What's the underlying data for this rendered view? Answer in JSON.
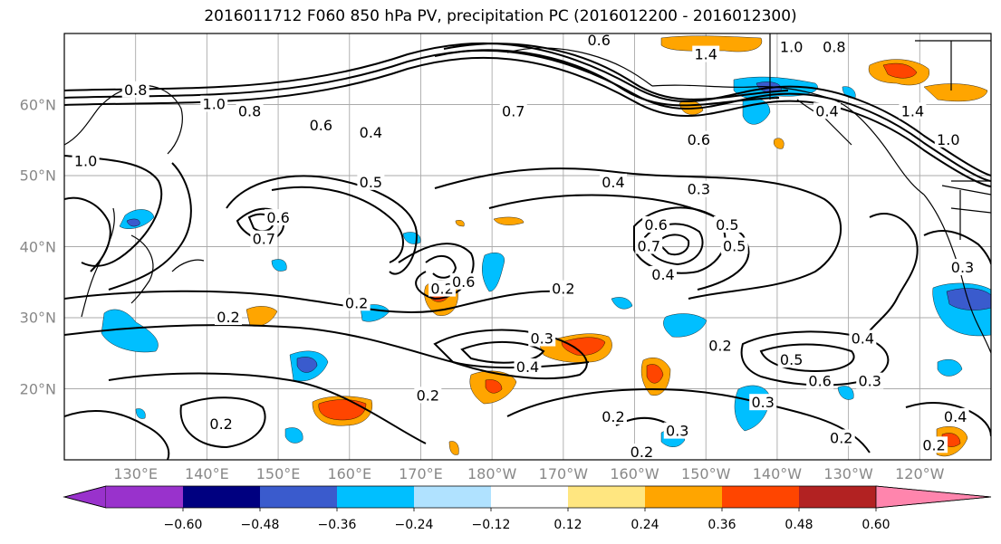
{
  "title": "2016011712 F060 850 hPa PV, precipitation PC (2016012200 - 2016012300)",
  "map": {
    "lat_labels": [
      "60°N",
      "50°N",
      "40°N",
      "30°N",
      "20°N"
    ],
    "lon_labels": [
      "130°E",
      "140°E",
      "150°E",
      "160°E",
      "170°E",
      "180°W",
      "170°W",
      "160°W",
      "150°W",
      "140°W",
      "130°W",
      "120°W"
    ],
    "extent": {
      "lon_min": 120,
      "lon_max": 250,
      "lat_min": 10,
      "lat_max": 70
    },
    "contour_labels": [
      {
        "text": "0.8",
        "lon": 130,
        "lat": 62
      },
      {
        "text": "1.0",
        "lon": 141,
        "lat": 60
      },
      {
        "text": "0.8",
        "lon": 146,
        "lat": 59
      },
      {
        "text": "1.0",
        "lon": 123,
        "lat": 52
      },
      {
        "text": "0.6",
        "lon": 156,
        "lat": 57
      },
      {
        "text": "0.4",
        "lon": 163,
        "lat": 56
      },
      {
        "text": "0.5",
        "lon": 163,
        "lat": 49
      },
      {
        "text": "0.4",
        "lon": 197,
        "lat": 49
      },
      {
        "text": "0.7",
        "lon": 183,
        "lat": 59
      },
      {
        "text": "0.6",
        "lon": 209,
        "lat": 55
      },
      {
        "text": "0.3",
        "lon": 209,
        "lat": 48
      },
      {
        "text": "0.6",
        "lon": 195,
        "lat": 69
      },
      {
        "text": "1.4",
        "lon": 210,
        "lat": 67
      },
      {
        "text": "1.0",
        "lon": 222,
        "lat": 68
      },
      {
        "text": "0.8",
        "lon": 228,
        "lat": 68
      },
      {
        "text": "0.4",
        "lon": 227,
        "lat": 59
      },
      {
        "text": "1.4",
        "lon": 239,
        "lat": 59
      },
      {
        "text": "1.0",
        "lon": 244,
        "lat": 55
      },
      {
        "text": "0.6",
        "lon": 150,
        "lat": 44
      },
      {
        "text": "0.7",
        "lon": 148,
        "lat": 41
      },
      {
        "text": "0.2",
        "lon": 161,
        "lat": 32
      },
      {
        "text": "0.2",
        "lon": 173,
        "lat": 34
      },
      {
        "text": "0.6",
        "lon": 176,
        "lat": 35
      },
      {
        "text": "0.2",
        "lon": 190,
        "lat": 34
      },
      {
        "text": "0.6",
        "lon": 203,
        "lat": 43
      },
      {
        "text": "0.7",
        "lon": 202,
        "lat": 40
      },
      {
        "text": "0.4",
        "lon": 204,
        "lat": 36
      },
      {
        "text": "0.5",
        "lon": 213,
        "lat": 43
      },
      {
        "text": "0.5",
        "lon": 214,
        "lat": 40
      },
      {
        "text": "0.2",
        "lon": 143,
        "lat": 30
      },
      {
        "text": "0.3",
        "lon": 187,
        "lat": 27
      },
      {
        "text": "0.4",
        "lon": 185,
        "lat": 23
      },
      {
        "text": "0.2",
        "lon": 171,
        "lat": 19
      },
      {
        "text": "0.2",
        "lon": 142,
        "lat": 15
      },
      {
        "text": "0.2",
        "lon": 197,
        "lat": 16
      },
      {
        "text": "0.2",
        "lon": 201,
        "lat": 11
      },
      {
        "text": "0.3",
        "lon": 206,
        "lat": 14
      },
      {
        "text": "0.2",
        "lon": 212,
        "lat": 26
      },
      {
        "text": "0.5",
        "lon": 222,
        "lat": 24
      },
      {
        "text": "0.6",
        "lon": 226,
        "lat": 21
      },
      {
        "text": "0.3",
        "lon": 218,
        "lat": 18
      },
      {
        "text": "0.4",
        "lon": 232,
        "lat": 27
      },
      {
        "text": "0.3",
        "lon": 233,
        "lat": 21
      },
      {
        "text": "0.2",
        "lon": 229,
        "lat": 13
      },
      {
        "text": "0.4",
        "lon": 245,
        "lat": 16
      },
      {
        "text": "0.2",
        "lon": 242,
        "lat": 12
      },
      {
        "text": "0.3",
        "lon": 246,
        "lat": 37
      }
    ]
  },
  "colorbar": {
    "tick_labels": [
      "−0.60",
      "−0.48",
      "−0.36",
      "−0.24",
      "−0.12",
      "0.12",
      "0.24",
      "0.36",
      "0.48",
      "0.60"
    ],
    "colors": {
      "below": "#9932cc",
      "bins": [
        "#9932cc",
        "#000080",
        "#3a5bcd",
        "#00bfff",
        "#b0e2ff",
        "#ffffff",
        "#ffe680",
        "#ffa500",
        "#ff4500",
        "#b22222"
      ],
      "above": "#ff85ad"
    }
  }
}
